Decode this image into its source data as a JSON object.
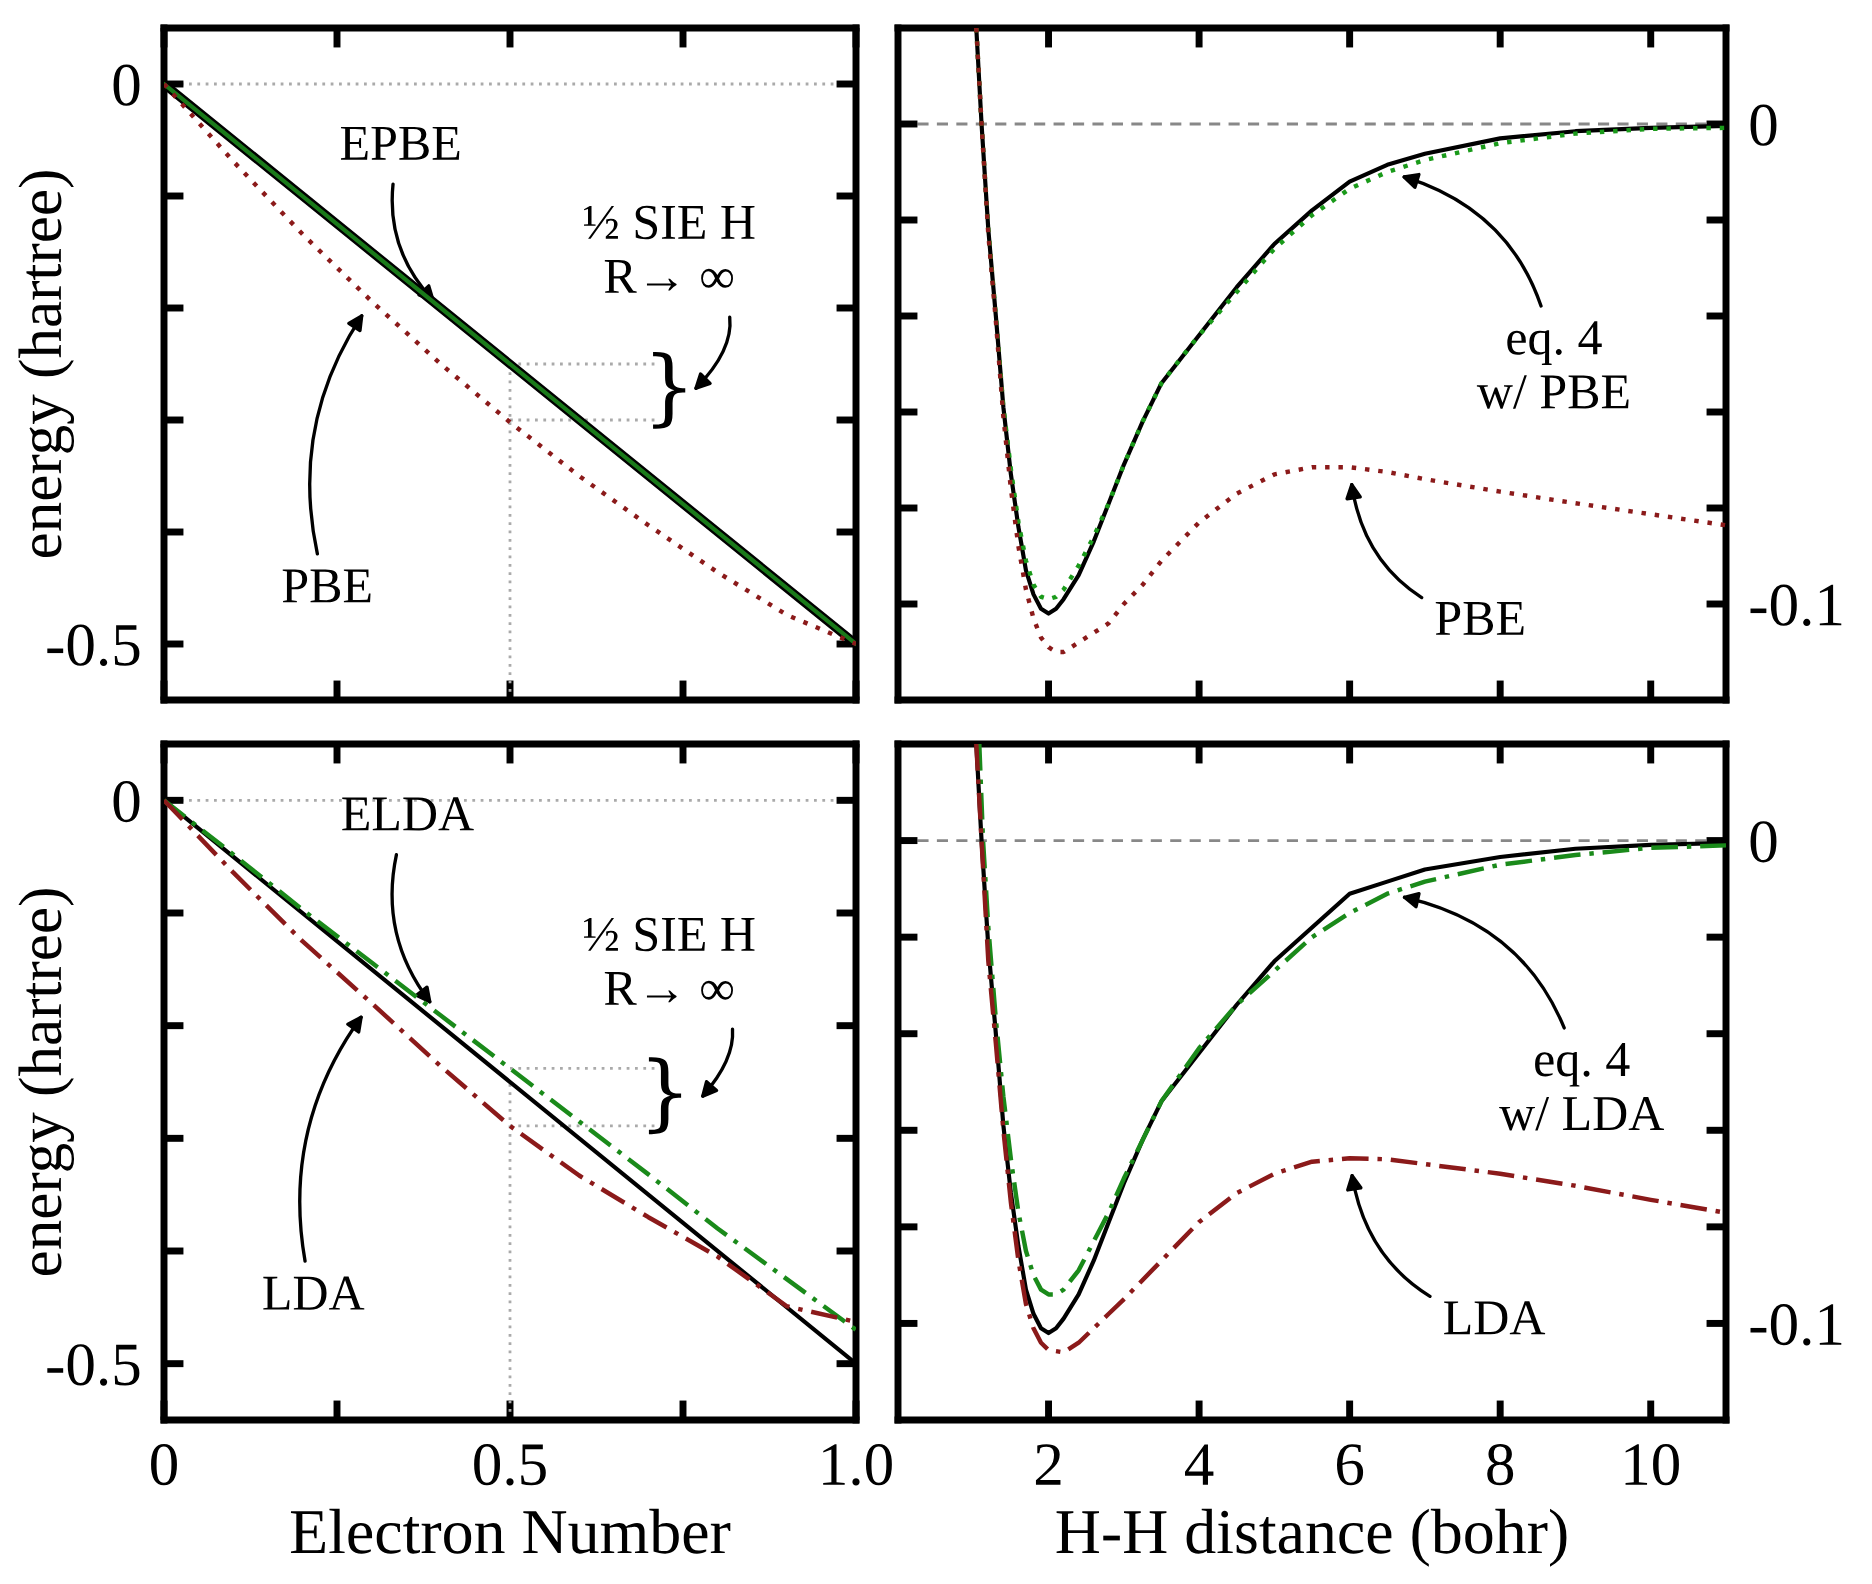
{
  "chart_data": [
    {
      "type": "line",
      "ylabel": "energy (hartree)",
      "xlim": [
        0,
        1
      ],
      "ylim": [
        -0.55,
        0.05
      ],
      "xticks": [
        0,
        {
          "value": 0.25,
          "label": null
        },
        0.5,
        {
          "value": 0.75,
          "label": null
        },
        1
      ],
      "tick_labels": "y",
      "yticks": [
        0,
        {
          "value": -0.1,
          "label": null
        },
        {
          "value": -0.2,
          "label": null
        },
        {
          "value": -0.3,
          "label": null
        },
        {
          "value": -0.4,
          "label": null
        },
        -0.5
      ],
      "ref_lines": [
        {
          "axis": "y",
          "value": 0,
          "color": "#aaaaaa",
          "line_style": "dotted"
        }
      ],
      "series": [
        {
          "color": "#aaaaaa",
          "line_style": "dotted",
          "x": [
            0.5,
            0.5
          ],
          "values": [
            -0.55,
            -0.25
          ]
        },
        {
          "color": "#aaaaaa",
          "line_style": "dotted",
          "x": [
            0.5,
            0.71
          ],
          "values": [
            -0.25,
            -0.25
          ]
        },
        {
          "color": "#aaaaaa",
          "line_style": "dotted",
          "x": [
            0.5,
            0.71
          ],
          "values": [
            -0.3,
            -0.3
          ]
        },
        {
          "color": "#000000",
          "line_style": "solid",
          "x": [
            0,
            1
          ],
          "values": [
            0,
            -0.5
          ]
        },
        {
          "color": "#1a7a1a",
          "line_style": "solid",
          "x": [
            0,
            1
          ],
          "values": [
            0,
            -0.5
          ]
        },
        {
          "color": "#8b1a1a",
          "line_style": "dotted",
          "x": [
            0,
            0.1,
            0.2,
            0.3,
            0.4,
            0.5,
            0.6,
            0.7,
            0.8,
            0.9,
            1.0
          ],
          "values": [
            0,
            -0.069,
            -0.134,
            -0.194,
            -0.25,
            -0.302,
            -0.35,
            -0.394,
            -0.436,
            -0.474,
            -0.5
          ]
        }
      ],
      "annotations": [
        {
          "text": "EPBE",
          "x": 0.398,
          "y": -0.199
        },
        {
          "text": "PBE",
          "x": 0.3,
          "y": -0.194
        },
        "½ SIE H\nR→ ∞",
        "}"
      ]
    },
    {
      "type": "line",
      "xlim": [
        0,
        11
      ],
      "ylim": [
        -0.12,
        0.02
      ],
      "xticks": [
        2,
        4,
        6,
        8,
        10
      ],
      "tick_labels": "y",
      "yticks": [
        0,
        {
          "value": -0.02,
          "label": null
        },
        {
          "value": -0.04,
          "label": null
        },
        {
          "value": -0.06,
          "label": null
        },
        {
          "value": -0.08,
          "label": null
        },
        -0.1
      ],
      "ref_lines": [
        {
          "axis": "y",
          "value": 0,
          "color": "#888888",
          "line_style": "dashed"
        }
      ],
      "series": [
        {
          "color": "#000000",
          "line_style": "solid",
          "x": [
            1.04,
            1.11,
            1.2,
            1.3,
            1.4,
            1.5,
            1.6,
            1.7,
            1.8,
            1.9,
            2.0,
            2.1,
            2.2,
            2.4,
            2.6,
            2.8,
            3.0,
            3.25,
            3.5,
            4.0,
            4.5,
            5.0,
            5.5,
            6.0,
            6.5,
            7.0,
            8.0,
            9.0,
            10.0,
            11.0
          ],
          "values": [
            0.02,
            0,
            -0.022,
            -0.04,
            -0.059,
            -0.073,
            -0.084,
            -0.093,
            -0.098,
            -0.101,
            -0.102,
            -0.101,
            -0.099,
            -0.094,
            -0.087,
            -0.079,
            -0.071,
            -0.062,
            -0.054,
            -0.044,
            -0.034,
            -0.025,
            -0.018,
            -0.012,
            -0.0085,
            -0.0062,
            -0.003,
            -0.0015,
            -0.0008,
            -0.0004
          ]
        },
        {
          "color": "#1a9a1a",
          "line_style": "dotted",
          "x": [
            1.04,
            1.11,
            1.2,
            1.3,
            1.4,
            1.5,
            1.6,
            1.7,
            1.8,
            1.9,
            2.0,
            2.1,
            2.2,
            2.4,
            2.6,
            2.8,
            3.0,
            3.25,
            3.5,
            4.0,
            4.5,
            5.0,
            5.5,
            6.0,
            6.5,
            7.0,
            8.0,
            9.0,
            10.0,
            11.0
          ],
          "values": [
            0.02,
            0,
            -0.022,
            -0.04,
            -0.059,
            -0.072,
            -0.083,
            -0.091,
            -0.096,
            -0.0985,
            -0.099,
            -0.0985,
            -0.097,
            -0.092,
            -0.086,
            -0.079,
            -0.071,
            -0.062,
            -0.054,
            -0.044,
            -0.035,
            -0.026,
            -0.019,
            -0.0135,
            -0.01,
            -0.0075,
            -0.004,
            -0.002,
            -0.001,
            -0.0008
          ]
        },
        {
          "color": "#8b1a1a",
          "line_style": "dotted",
          "x": [
            1.04,
            1.11,
            1.2,
            1.3,
            1.4,
            1.5,
            1.6,
            1.7,
            1.8,
            1.9,
            2.0,
            2.1,
            2.2,
            2.4,
            2.6,
            2.8,
            3.0,
            3.25,
            3.5,
            4.0,
            4.5,
            5.0,
            5.5,
            6.0,
            6.5,
            7.0,
            8.0,
            9.0,
            10.0,
            11.0
          ],
          "values": [
            0.02,
            0,
            -0.023,
            -0.041,
            -0.061,
            -0.076,
            -0.088,
            -0.097,
            -0.103,
            -0.107,
            -0.109,
            -0.11,
            -0.11,
            -0.108,
            -0.106,
            -0.104,
            -0.1,
            -0.096,
            -0.091,
            -0.083,
            -0.077,
            -0.073,
            -0.0715,
            -0.0715,
            -0.0725,
            -0.074,
            -0.0766,
            -0.079,
            -0.0813,
            -0.0836
          ]
        }
      ],
      "annotations": [
        {
          "text": "eq. 4\nw/ PBE",
          "x": 6.5,
          "y": -0.01
        },
        {
          "text": "PBE",
          "x": 6.0,
          "y": -0.0715
        }
      ]
    },
    {
      "type": "line",
      "xlabel": "Electron Number",
      "ylabel": "energy (hartree)",
      "xlim": [
        0,
        1
      ],
      "ylim": [
        -0.55,
        0.05
      ],
      "xticks": [
        0,
        {
          "value": 0.25,
          "label": null
        },
        0.5,
        {
          "value": 0.75,
          "label": null
        },
        {
          "value": 1,
          "label": "1.0"
        }
      ],
      "yticks": [
        0,
        {
          "value": -0.1,
          "label": null
        },
        {
          "value": -0.2,
          "label": null
        },
        {
          "value": -0.3,
          "label": null
        },
        {
          "value": -0.4,
          "label": null
        },
        -0.5
      ],
      "ref_lines": [
        {
          "axis": "y",
          "value": 0,
          "color": "#aaaaaa",
          "line_style": "dotted"
        }
      ],
      "series": [
        {
          "color": "#aaaaaa",
          "line_style": "dotted",
          "x": [
            0.5,
            0.5
          ],
          "values": [
            -0.55,
            -0.25
          ]
        },
        {
          "color": "#aaaaaa",
          "line_style": "dotted",
          "x": [
            0.5,
            0.71
          ],
          "values": [
            -0.238,
            -0.238
          ]
        },
        {
          "color": "#aaaaaa",
          "line_style": "dotted",
          "x": [
            0.5,
            0.71
          ],
          "values": [
            -0.289,
            -0.289
          ]
        },
        {
          "color": "#000000",
          "line_style": "solid",
          "x": [
            0,
            1
          ],
          "values": [
            0,
            -0.5
          ]
        },
        {
          "color": "#1a8a1a",
          "line_style": "dashdot",
          "x": [
            0,
            0.1,
            0.2,
            0.3,
            0.4,
            0.5,
            0.6,
            0.7,
            0.8,
            0.9,
            1.0
          ],
          "values": [
            0,
            -0.048,
            -0.097,
            -0.144,
            -0.191,
            -0.238,
            -0.285,
            -0.332,
            -0.38,
            -0.425,
            -0.47
          ]
        },
        {
          "color": "#8b1a1a",
          "line_style": "dashdot",
          "x": [
            0,
            0.1,
            0.2,
            0.3,
            0.4,
            0.5,
            0.6,
            0.7,
            0.8,
            0.9,
            1.0
          ],
          "values": [
            0,
            -0.064,
            -0.125,
            -0.18,
            -0.236,
            -0.289,
            -0.333,
            -0.37,
            -0.405,
            -0.449,
            -0.463
          ]
        }
      ],
      "annotations": [
        {
          "text": "ELDA",
          "x": 0.4,
          "y": -0.191
        },
        {
          "text": "LDA",
          "x": 0.3,
          "y": -0.18
        },
        "½ SIE H\nR→ ∞",
        "}"
      ]
    },
    {
      "type": "line",
      "xlabel": "H-H distance (bohr)",
      "xlim": [
        0,
        11
      ],
      "ylim": [
        -0.12,
        0.02
      ],
      "xticks": [
        2,
        4,
        6,
        8,
        10
      ],
      "yticks": [
        0,
        {
          "value": -0.02,
          "label": null
        },
        {
          "value": -0.04,
          "label": null
        },
        {
          "value": -0.06,
          "label": null
        },
        {
          "value": -0.08,
          "label": null
        },
        -0.1
      ],
      "ref_lines": [
        {
          "axis": "y",
          "value": 0,
          "color": "#888888",
          "line_style": "dashed"
        }
      ],
      "series": [
        {
          "color": "#000000",
          "line_style": "solid",
          "x": [
            1.04,
            1.11,
            1.2,
            1.3,
            1.4,
            1.5,
            1.6,
            1.7,
            1.8,
            1.9,
            2.0,
            2.1,
            2.2,
            2.4,
            2.6,
            2.8,
            3.0,
            3.25,
            3.5,
            4.0,
            4.5,
            5.0,
            5.5,
            6.0,
            6.5,
            7.0,
            8.0,
            9.0,
            10.0,
            11.0
          ],
          "values": [
            0.02,
            0,
            -0.022,
            -0.04,
            -0.059,
            -0.073,
            -0.084,
            -0.093,
            -0.098,
            -0.101,
            -0.102,
            -0.101,
            -0.099,
            -0.094,
            -0.087,
            -0.079,
            -0.071,
            -0.062,
            -0.054,
            -0.044,
            -0.034,
            -0.025,
            -0.018,
            -0.011,
            -0.0085,
            -0.006,
            -0.0034,
            -0.0017,
            -0.0009,
            -0.0005
          ]
        },
        {
          "color": "#1a8a1a",
          "line_style": "dashdot",
          "x": [
            1.08,
            1.13,
            1.2,
            1.3,
            1.4,
            1.5,
            1.6,
            1.7,
            1.8,
            1.9,
            2.0,
            2.1,
            2.2,
            2.4,
            2.6,
            2.8,
            3.0,
            3.5,
            4.0,
            4.5,
            5.0,
            5.5,
            6.0,
            6.5,
            7.0,
            8.0,
            9.0,
            10.0,
            11.0
          ],
          "values": [
            0.02,
            0,
            -0.018,
            -0.037,
            -0.053,
            -0.066,
            -0.077,
            -0.085,
            -0.09,
            -0.093,
            -0.094,
            -0.094,
            -0.093,
            -0.089,
            -0.083,
            -0.077,
            -0.07,
            -0.054,
            -0.043,
            -0.034,
            -0.027,
            -0.02,
            -0.015,
            -0.011,
            -0.0085,
            -0.005,
            -0.003,
            -0.0015,
            -0.001
          ]
        },
        {
          "color": "#8b1a1a",
          "line_style": "dashdot",
          "x": [
            1.04,
            1.11,
            1.2,
            1.3,
            1.4,
            1.5,
            1.6,
            1.7,
            1.8,
            1.9,
            2.0,
            2.2,
            2.4,
            2.6,
            2.8,
            3.0,
            3.5,
            4.0,
            4.5,
            5.0,
            5.5,
            6.0,
            6.5,
            7.0,
            8.0,
            9.0,
            10.0,
            11.0
          ],
          "values": [
            0.02,
            0,
            -0.025,
            -0.042,
            -0.06,
            -0.075,
            -0.087,
            -0.096,
            -0.101,
            -0.104,
            -0.1055,
            -0.106,
            -0.104,
            -0.101,
            -0.098,
            -0.095,
            -0.087,
            -0.079,
            -0.073,
            -0.069,
            -0.0665,
            -0.0658,
            -0.066,
            -0.067,
            -0.069,
            -0.0715,
            -0.0744,
            -0.0771
          ]
        }
      ],
      "annotations": [
        {
          "text": "eq. 4\nw/ LDA",
          "x": 6.5,
          "y": -0.011
        },
        {
          "text": "LDA",
          "x": 6.0,
          "y": -0.0658
        }
      ]
    }
  ]
}
